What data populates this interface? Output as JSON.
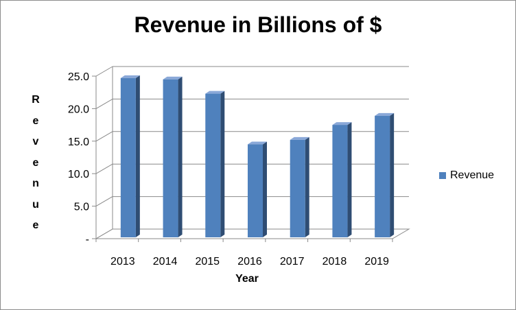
{
  "chart_data": {
    "type": "bar",
    "title": "Revenue in Billions of $",
    "xlabel": "Year",
    "ylabel": "Revenue",
    "categories": [
      "2013",
      "2014",
      "2015",
      "2016",
      "2017",
      "2018",
      "2019"
    ],
    "series": [
      {
        "name": "Revenue",
        "values": [
          24.7,
          24.5,
          22.3,
          14.5,
          15.2,
          17.5,
          18.9
        ]
      }
    ],
    "ylim": [
      0,
      25
    ],
    "yticks": [
      "-",
      "5.0",
      "10.0",
      "15.0",
      "20.0",
      "25.0"
    ],
    "grid": true,
    "legend_position": "right",
    "colors": {
      "bar_front": "#4f81bd",
      "bar_side": "#2f4d73",
      "bar_top": "#8aa8d8",
      "grid": "#898989"
    }
  }
}
